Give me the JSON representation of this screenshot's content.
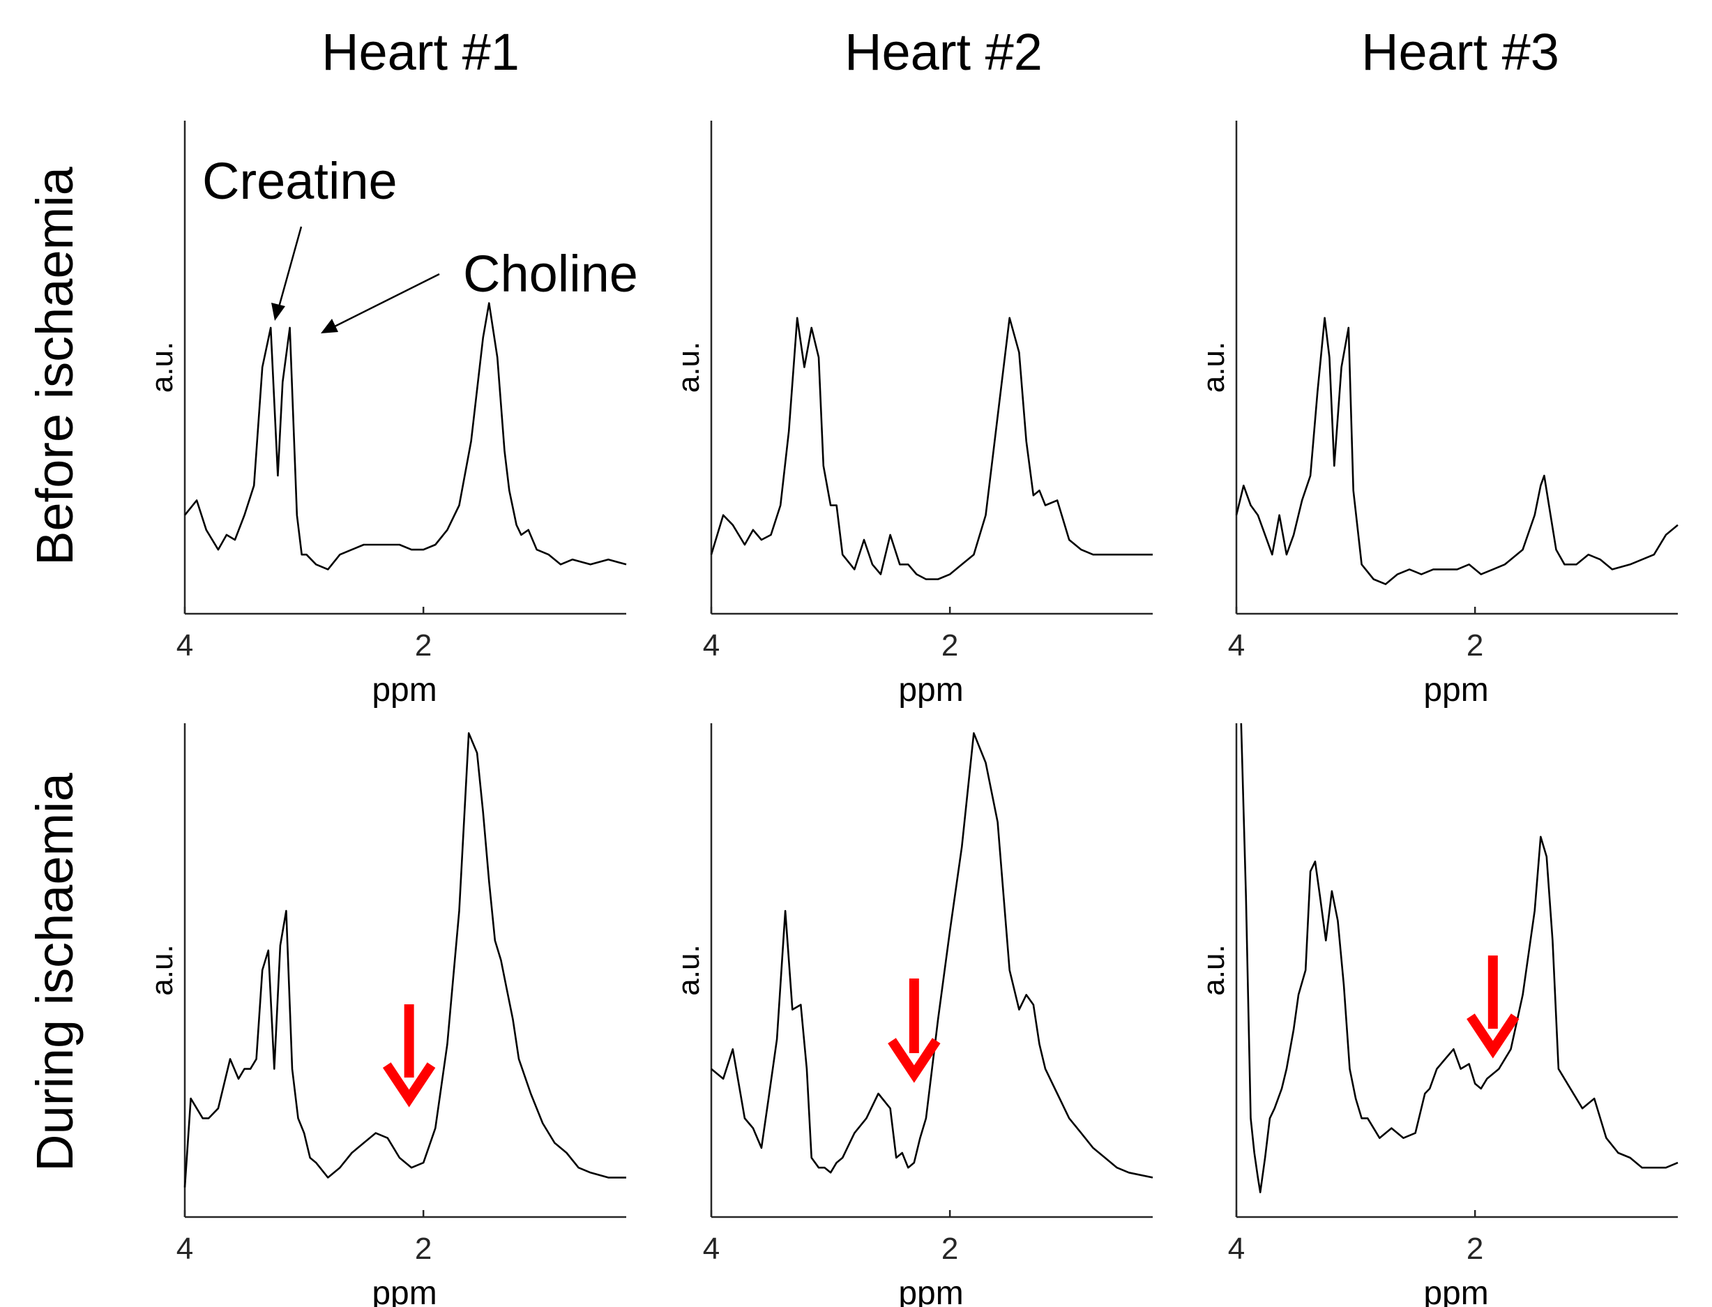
{
  "figure": {
    "column_titles": [
      "Heart #1",
      "Heart #2",
      "Heart #3"
    ],
    "row_titles": [
      "Before ischaemia",
      "During ischaemia"
    ],
    "annotations": {
      "creatine": "Creatine",
      "choline": "Choline"
    },
    "arrow_color": "#ff0000",
    "line_color": "#000000"
  },
  "chart_data": [
    {
      "type": "line",
      "panel": "Heart #1 - Before ischaemia",
      "xlabel": "ppm",
      "ylabel": "a.u.",
      "xlim": [
        4.0,
        0.3
      ],
      "ylim": [
        0,
        1
      ],
      "xticks": [
        4,
        2
      ],
      "x_reversed": true,
      "series": [
        {
          "x": [
            4.0,
            3.9,
            3.82,
            3.72,
            3.65,
            3.58,
            3.5,
            3.42,
            3.35,
            3.28,
            3.22,
            3.18,
            3.12,
            3.06,
            3.02,
            2.98,
            2.9,
            2.8,
            2.7,
            2.6,
            2.5,
            2.4,
            2.3,
            2.2,
            2.1,
            2.0,
            1.9,
            1.8,
            1.7,
            1.6,
            1.5,
            1.45,
            1.38,
            1.32,
            1.28,
            1.22,
            1.18,
            1.12,
            1.05,
            0.95,
            0.85,
            0.75,
            0.6,
            0.45,
            0.3
          ],
          "y": [
            0.2,
            0.23,
            0.17,
            0.13,
            0.16,
            0.15,
            0.2,
            0.26,
            0.5,
            0.58,
            0.28,
            0.47,
            0.58,
            0.2,
            0.12,
            0.12,
            0.1,
            0.09,
            0.12,
            0.13,
            0.14,
            0.14,
            0.14,
            0.14,
            0.13,
            0.13,
            0.14,
            0.17,
            0.22,
            0.35,
            0.56,
            0.63,
            0.52,
            0.33,
            0.25,
            0.18,
            0.16,
            0.17,
            0.13,
            0.12,
            0.1,
            0.11,
            0.1,
            0.11,
            0.1
          ]
        }
      ]
    },
    {
      "type": "line",
      "panel": "Heart #2 - Before ischaemia",
      "xlabel": "ppm",
      "ylabel": "a.u.",
      "xlim": [
        4.0,
        0.3
      ],
      "ylim": [
        0,
        1
      ],
      "xticks": [
        4,
        2
      ],
      "x_reversed": true,
      "series": [
        {
          "x": [
            4.0,
            3.9,
            3.82,
            3.72,
            3.65,
            3.58,
            3.5,
            3.42,
            3.35,
            3.28,
            3.22,
            3.16,
            3.1,
            3.06,
            3.0,
            2.95,
            2.9,
            2.8,
            2.72,
            2.65,
            2.58,
            2.5,
            2.42,
            2.35,
            2.28,
            2.2,
            2.1,
            2.0,
            1.9,
            1.8,
            1.7,
            1.6,
            1.5,
            1.42,
            1.36,
            1.3,
            1.25,
            1.2,
            1.1,
            1.0,
            0.9,
            0.8,
            0.7,
            0.5,
            0.3
          ],
          "y": [
            0.12,
            0.2,
            0.18,
            0.14,
            0.17,
            0.15,
            0.16,
            0.22,
            0.37,
            0.6,
            0.5,
            0.58,
            0.52,
            0.3,
            0.22,
            0.22,
            0.12,
            0.09,
            0.15,
            0.1,
            0.08,
            0.16,
            0.1,
            0.1,
            0.08,
            0.07,
            0.07,
            0.08,
            0.1,
            0.12,
            0.2,
            0.4,
            0.6,
            0.53,
            0.35,
            0.24,
            0.25,
            0.22,
            0.23,
            0.15,
            0.13,
            0.12,
            0.12,
            0.12,
            0.12
          ]
        }
      ]
    },
    {
      "type": "line",
      "panel": "Heart #3 - Before ischaemia",
      "xlabel": "ppm",
      "ylabel": "a.u.",
      "xlim": [
        4.0,
        0.3
      ],
      "ylim": [
        0,
        1
      ],
      "xticks": [
        4,
        2
      ],
      "x_reversed": true,
      "series": [
        {
          "x": [
            4.0,
            3.94,
            3.88,
            3.82,
            3.76,
            3.7,
            3.64,
            3.58,
            3.52,
            3.45,
            3.38,
            3.32,
            3.26,
            3.22,
            3.18,
            3.12,
            3.06,
            3.02,
            2.95,
            2.85,
            2.75,
            2.65,
            2.55,
            2.45,
            2.35,
            2.25,
            2.15,
            2.05,
            1.95,
            1.85,
            1.75,
            1.6,
            1.5,
            1.45,
            1.42,
            1.38,
            1.32,
            1.25,
            1.15,
            1.05,
            0.95,
            0.85,
            0.7,
            0.5,
            0.4,
            0.3
          ],
          "y": [
            0.2,
            0.26,
            0.22,
            0.2,
            0.16,
            0.12,
            0.2,
            0.12,
            0.16,
            0.23,
            0.28,
            0.45,
            0.6,
            0.52,
            0.3,
            0.5,
            0.58,
            0.25,
            0.1,
            0.07,
            0.06,
            0.08,
            0.09,
            0.08,
            0.09,
            0.09,
            0.09,
            0.1,
            0.08,
            0.09,
            0.1,
            0.13,
            0.2,
            0.26,
            0.28,
            0.22,
            0.13,
            0.1,
            0.1,
            0.12,
            0.11,
            0.09,
            0.1,
            0.12,
            0.16,
            0.18
          ]
        }
      ]
    },
    {
      "type": "line",
      "panel": "Heart #1 - During ischaemia",
      "xlabel": "ppm",
      "ylabel": "a.u.",
      "xlim": [
        4.0,
        0.3
      ],
      "ylim": [
        0,
        1
      ],
      "xticks": [
        4,
        2
      ],
      "x_reversed": true,
      "series": [
        {
          "x": [
            4.0,
            3.95,
            3.9,
            3.85,
            3.8,
            3.72,
            3.62,
            3.55,
            3.5,
            3.45,
            3.4,
            3.35,
            3.3,
            3.25,
            3.2,
            3.15,
            3.1,
            3.05,
            3.0,
            2.95,
            2.9,
            2.8,
            2.7,
            2.6,
            2.5,
            2.4,
            2.3,
            2.2,
            2.1,
            2.0,
            1.9,
            1.8,
            1.7,
            1.62,
            1.55,
            1.5,
            1.45,
            1.4,
            1.35,
            1.3,
            1.25,
            1.2,
            1.1,
            1.0,
            0.9,
            0.8,
            0.7,
            0.6,
            0.45,
            0.3
          ],
          "y": [
            0.06,
            0.24,
            0.22,
            0.2,
            0.2,
            0.22,
            0.32,
            0.28,
            0.3,
            0.3,
            0.32,
            0.5,
            0.54,
            0.3,
            0.55,
            0.62,
            0.3,
            0.2,
            0.17,
            0.12,
            0.11,
            0.08,
            0.1,
            0.13,
            0.15,
            0.17,
            0.16,
            0.12,
            0.1,
            0.11,
            0.18,
            0.35,
            0.62,
            0.98,
            0.94,
            0.82,
            0.68,
            0.56,
            0.52,
            0.46,
            0.4,
            0.32,
            0.25,
            0.19,
            0.15,
            0.13,
            0.1,
            0.09,
            0.08,
            0.08
          ]
        }
      ]
    },
    {
      "type": "line",
      "panel": "Heart #2 - During ischaemia",
      "xlabel": "ppm",
      "ylabel": "a.u.",
      "xlim": [
        4.0,
        0.3
      ],
      "ylim": [
        0,
        1
      ],
      "xticks": [
        4,
        2
      ],
      "x_reversed": true,
      "series": [
        {
          "x": [
            4.0,
            3.9,
            3.82,
            3.72,
            3.65,
            3.58,
            3.52,
            3.45,
            3.38,
            3.32,
            3.25,
            3.2,
            3.16,
            3.1,
            3.05,
            3.0,
            2.95,
            2.9,
            2.8,
            2.7,
            2.6,
            2.5,
            2.45,
            2.4,
            2.35,
            2.3,
            2.25,
            2.2,
            2.15,
            2.1,
            2.0,
            1.9,
            1.8,
            1.7,
            1.6,
            1.5,
            1.42,
            1.36,
            1.3,
            1.25,
            1.2,
            1.1,
            1.0,
            0.9,
            0.8,
            0.7,
            0.6,
            0.5,
            0.3
          ],
          "y": [
            0.3,
            0.28,
            0.34,
            0.2,
            0.18,
            0.14,
            0.24,
            0.36,
            0.62,
            0.42,
            0.43,
            0.3,
            0.12,
            0.1,
            0.1,
            0.09,
            0.11,
            0.12,
            0.17,
            0.2,
            0.25,
            0.22,
            0.12,
            0.13,
            0.1,
            0.11,
            0.16,
            0.2,
            0.3,
            0.4,
            0.58,
            0.75,
            0.98,
            0.92,
            0.8,
            0.5,
            0.42,
            0.45,
            0.43,
            0.35,
            0.3,
            0.25,
            0.2,
            0.17,
            0.14,
            0.12,
            0.1,
            0.09,
            0.08
          ]
        }
      ]
    },
    {
      "type": "line",
      "panel": "Heart #3 - During ischaemia",
      "xlabel": "ppm",
      "ylabel": "a.u.",
      "xlim": [
        4.0,
        0.3
      ],
      "ylim": [
        0,
        1
      ],
      "xticks": [
        4,
        2
      ],
      "x_reversed": true,
      "series": [
        {
          "x": [
            3.96,
            3.92,
            3.88,
            3.85,
            3.82,
            3.8,
            3.76,
            3.72,
            3.68,
            3.62,
            3.58,
            3.52,
            3.48,
            3.42,
            3.38,
            3.34,
            3.3,
            3.25,
            3.2,
            3.15,
            3.1,
            3.05,
            3.0,
            2.95,
            2.9,
            2.8,
            2.7,
            2.6,
            2.5,
            2.42,
            2.38,
            2.32,
            2.25,
            2.18,
            2.12,
            2.05,
            2.0,
            1.95,
            1.9,
            1.8,
            1.7,
            1.6,
            1.5,
            1.45,
            1.4,
            1.35,
            1.3,
            1.2,
            1.1,
            1.0,
            0.9,
            0.8,
            0.7,
            0.6,
            0.5,
            0.4,
            0.3
          ],
          "y": [
            1.0,
            0.65,
            0.2,
            0.13,
            0.08,
            0.05,
            0.12,
            0.2,
            0.22,
            0.26,
            0.3,
            0.38,
            0.45,
            0.5,
            0.7,
            0.72,
            0.65,
            0.56,
            0.66,
            0.6,
            0.47,
            0.3,
            0.24,
            0.2,
            0.2,
            0.16,
            0.18,
            0.16,
            0.17,
            0.25,
            0.26,
            0.3,
            0.32,
            0.34,
            0.3,
            0.31,
            0.27,
            0.26,
            0.28,
            0.3,
            0.34,
            0.45,
            0.62,
            0.77,
            0.73,
            0.56,
            0.3,
            0.26,
            0.22,
            0.24,
            0.16,
            0.13,
            0.12,
            0.1,
            0.1,
            0.1,
            0.11
          ]
        }
      ]
    }
  ]
}
